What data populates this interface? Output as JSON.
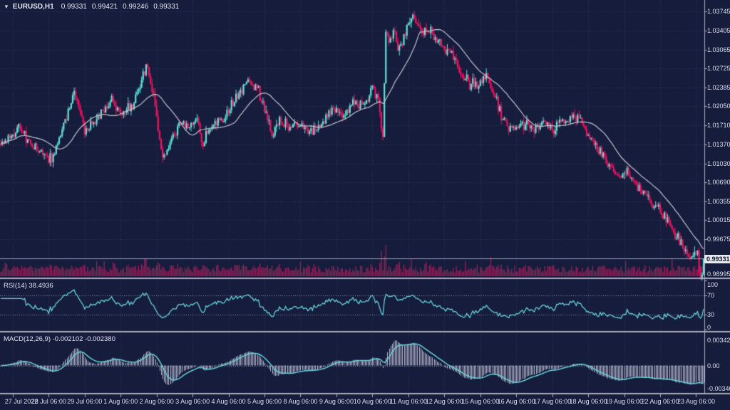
{
  "header": {
    "symbol_period": "EURUSD,H1",
    "open": "0.99331",
    "high": "0.99421",
    "low": "0.99246",
    "close": "0.99331",
    "menu_icon": "chart-context-triangle"
  },
  "indicators": {
    "ma": {
      "name": "Moving Average",
      "period": 24,
      "color": "#c2c4ce"
    },
    "rsi": {
      "label": "RSI(14) 38.4936",
      "period": 14,
      "current": 38.4936,
      "levels": [
        100,
        70,
        30,
        0
      ],
      "line_color": "#6ad2da"
    },
    "macd": {
      "label": "MACD(12,26,9) -0.002102 -0.002380",
      "fast": 12,
      "slow": 26,
      "signal": 9,
      "macd_value": -0.002102,
      "signal_value": -0.00238,
      "axis_labels": [
        "0.003429",
        "0.00",
        "-0.003467"
      ],
      "hist_color": "#b9bdcf",
      "signal_color": "#6ad2da"
    }
  },
  "colors": {
    "background": "#151c3c",
    "grid": "#2e3760",
    "level_dotted": "#8d95ad",
    "bull": "#63e0d5",
    "bear": "#ec145e",
    "volume": "#8e2558",
    "separator": "#a9aebf",
    "axis_text": "#dcdfeb",
    "price_line": "#9ba1b5",
    "tag_bg": "#e8e9ef",
    "tag_text": "#11172f"
  },
  "chart_data": {
    "type": "candlestick",
    "title": "EURUSD H1 chart with volume, RSI(14) and MACD(12,26,9)",
    "symbol": "EURUSD",
    "timeframe": "H1",
    "current_price": "0.99331",
    "displayed_ohlc": {
      "open": 0.99331,
      "high": 0.99421,
      "low": 0.99246,
      "close": 0.99331
    },
    "price_axis_labels": [
      "1.03745",
      "1.03405",
      "1.03065",
      "1.02725",
      "1.02385",
      "1.02050",
      "1.01710",
      "1.01370",
      "1.01030",
      "1.00690",
      "1.00355",
      "1.00015",
      "0.99675",
      "0.98995"
    ],
    "price_range": {
      "top": 1.0395,
      "bottom": 0.9899
    },
    "rsi_range": [
      0,
      100
    ],
    "macd_range": [
      -0.003467,
      0.003429
    ],
    "time_axis_labels": [
      "27 Jul 2022",
      "28 Jul 06:00",
      "29 Jul 06:00",
      "1 Aug 06:00",
      "2 Aug 06:00",
      "3 Aug 06:00",
      "4 Aug 06:00",
      "5 Aug 06:00",
      "8 Aug 06:00",
      "9 Aug 06:00",
      "10 Aug 06:00",
      "11 Aug 06:00",
      "12 Aug 06:00",
      "15 Aug 06:00",
      "16 Aug 06:00",
      "17 Aug 06:00",
      "18 Aug 06:00",
      "19 Aug 06:00",
      "22 Aug 06:00",
      "23 Aug 06:00"
    ],
    "bar_count": 470,
    "first_tick_bar": 8,
    "bars_per_tick": 24,
    "seed": 42,
    "noise": 0.00085,
    "price_path_anchors": [
      [
        0,
        1.0138
      ],
      [
        6,
        1.0152
      ],
      [
        12,
        1.0168
      ],
      [
        21,
        1.0132
      ],
      [
        28,
        1.0124
      ],
      [
        34,
        1.0108
      ],
      [
        40,
        1.0155
      ],
      [
        45,
        1.0195
      ],
      [
        49,
        1.0228
      ],
      [
        56,
        1.0162
      ],
      [
        64,
        1.018
      ],
      [
        74,
        1.0218
      ],
      [
        81,
        1.019
      ],
      [
        88,
        1.0205
      ],
      [
        97,
        1.028
      ],
      [
        102,
        1.0225
      ],
      [
        108,
        1.011
      ],
      [
        114,
        1.015
      ],
      [
        120,
        1.0175
      ],
      [
        126,
        1.0163
      ],
      [
        131,
        1.019
      ],
      [
        134,
        1.0135
      ],
      [
        140,
        1.0165
      ],
      [
        148,
        1.018
      ],
      [
        157,
        1.022
      ],
      [
        164,
        1.0248
      ],
      [
        171,
        1.0238
      ],
      [
        176,
        1.02
      ],
      [
        181,
        1.015
      ],
      [
        186,
        1.018
      ],
      [
        193,
        1.0168
      ],
      [
        200,
        1.0172
      ],
      [
        207,
        1.0158
      ],
      [
        214,
        1.0175
      ],
      [
        221,
        1.02
      ],
      [
        228,
        1.019
      ],
      [
        236,
        1.0215
      ],
      [
        243,
        1.0205
      ],
      [
        248,
        1.024
      ],
      [
        252,
        1.021
      ],
      [
        255,
        1.0148
      ],
      [
        257,
        1.034
      ],
      [
        259,
        1.0318
      ],
      [
        263,
        1.0345
      ],
      [
        265,
        1.03
      ],
      [
        269,
        1.033
      ],
      [
        272,
        1.0352
      ],
      [
        276,
        1.0365
      ],
      [
        281,
        1.0338
      ],
      [
        284,
        1.035
      ],
      [
        289,
        1.0328
      ],
      [
        295,
        1.031
      ],
      [
        301,
        1.0298
      ],
      [
        307,
        1.0268
      ],
      [
        313,
        1.0246
      ],
      [
        318,
        1.024
      ],
      [
        324,
        1.0262
      ],
      [
        329,
        1.0228
      ],
      [
        335,
        1.0185
      ],
      [
        342,
        1.0158
      ],
      [
        347,
        1.0175
      ],
      [
        355,
        1.0166
      ],
      [
        362,
        1.0176
      ],
      [
        369,
        1.0166
      ],
      [
        376,
        1.018
      ],
      [
        383,
        1.0188
      ],
      [
        389,
        1.0168
      ],
      [
        396,
        1.0138
      ],
      [
        402,
        1.0116
      ],
      [
        408,
        1.009
      ],
      [
        413,
        1.0078
      ],
      [
        418,
        1.0094
      ],
      [
        424,
        1.006
      ],
      [
        430,
        1.0046
      ],
      [
        436,
        1.0028
      ],
      [
        442,
        1.0013
      ],
      [
        447,
        0.9993
      ],
      [
        453,
        0.9966
      ],
      [
        457,
        0.9944
      ],
      [
        460,
        0.9934
      ],
      [
        463,
        0.9941
      ],
      [
        465,
        0.9937
      ],
      [
        467,
        0.9902
      ],
      [
        468,
        0.9906
      ],
      [
        469,
        0.99331
      ]
    ]
  }
}
